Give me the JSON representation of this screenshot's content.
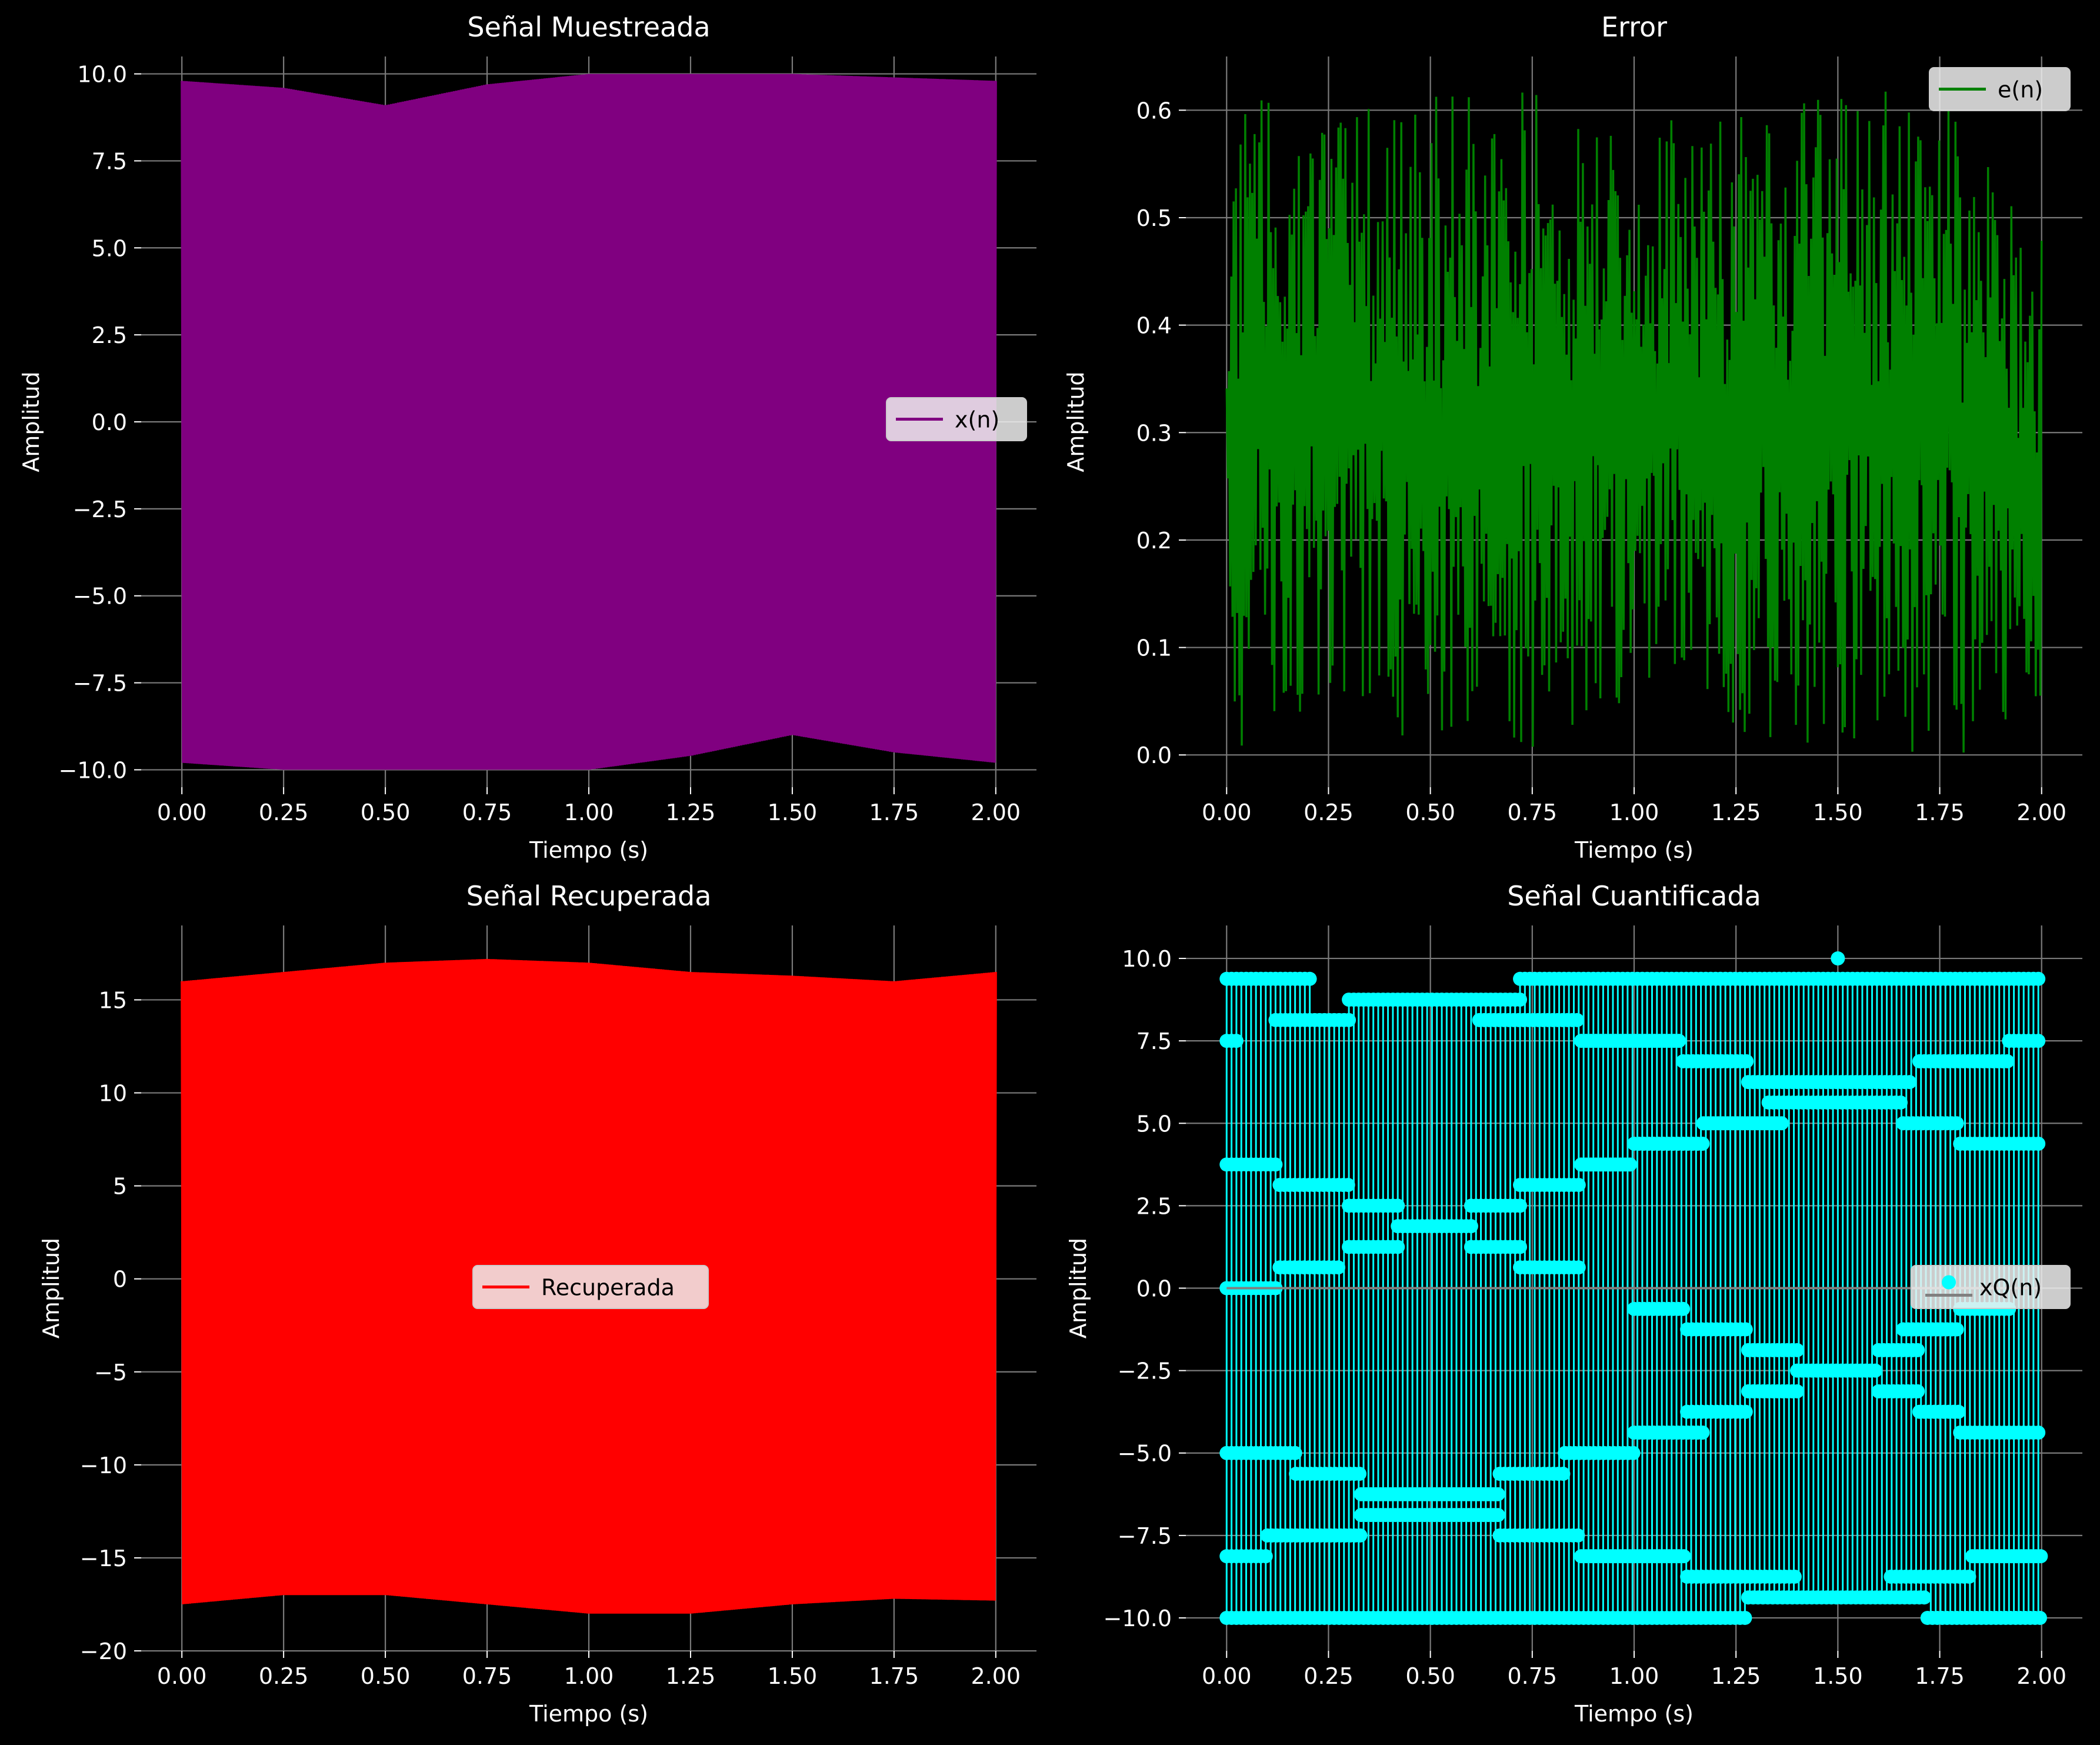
{
  "chart_data": [
    {
      "type": "line",
      "title": "Señal Muestreada",
      "xlabel": "Tiempo (s)",
      "ylabel": "Amplitud",
      "xlim": [
        -0.1,
        2.1
      ],
      "ylim": [
        -10.5,
        10.5
      ],
      "xticks": [
        0,
        0.25,
        0.5,
        0.75,
        1.0,
        1.25,
        1.5,
        1.75,
        2.0
      ],
      "xtick_labels": [
        "0.00",
        "0.25",
        "0.50",
        "0.75",
        "1.00",
        "1.25",
        "1.50",
        "1.75",
        "2.00"
      ],
      "yticks": [
        10,
        7.5,
        5,
        2.5,
        0,
        -2.5,
        -5,
        -7.5,
        -10
      ],
      "ytick_labels": [
        "10.0",
        "7.5",
        "5.0",
        "2.5",
        "0.0",
        "−2.5",
        "−5.0",
        "−7.5",
        "−10.0"
      ],
      "grid": true,
      "legend_position": "center-right",
      "series": [
        {
          "name": "x(n)",
          "color": "#800080",
          "style": "dense oscillation",
          "x": [
            0,
            0.25,
            0.5,
            0.75,
            1.0,
            1.25,
            1.5,
            1.75,
            2.0
          ],
          "envelope_max": [
            9.8,
            9.6,
            9.1,
            9.7,
            10.0,
            10.0,
            10.0,
            9.9,
            9.8
          ],
          "envelope_min": [
            -9.8,
            -10.0,
            -10.0,
            -10.0,
            -10.0,
            -9.6,
            -9.0,
            -9.5,
            -9.8
          ]
        }
      ]
    },
    {
      "type": "line",
      "title": "Error",
      "xlabel": "Tiempo (s)",
      "ylabel": "Amplitud",
      "xlim": [
        -0.1,
        2.1
      ],
      "ylim": [
        -0.03,
        0.65
      ],
      "xticks": [
        0,
        0.25,
        0.5,
        0.75,
        1.0,
        1.25,
        1.5,
        1.75,
        2.0
      ],
      "xtick_labels": [
        "0.00",
        "0.25",
        "0.50",
        "0.75",
        "1.00",
        "1.25",
        "1.50",
        "1.75",
        "2.00"
      ],
      "yticks": [
        0.6,
        0.5,
        0.4,
        0.3,
        0.2,
        0.1,
        0.0
      ],
      "ytick_labels": [
        "0.6",
        "0.5",
        "0.4",
        "0.3",
        "0.2",
        "0.1",
        "0.0"
      ],
      "grid": true,
      "legend_position": "top-right",
      "series": [
        {
          "name": "e(n)",
          "color": "#008000",
          "style": "dense oscillation",
          "x": [
            0,
            0.25,
            0.5,
            0.75,
            1.0,
            1.25,
            1.5,
            1.75,
            2.0
          ],
          "envelope_max": [
            0.62,
            0.6,
            0.62,
            0.62,
            0.6,
            0.6,
            0.62,
            0.62,
            0.5
          ],
          "envelope_min": [
            0.0,
            0.05,
            0.0,
            0.0,
            0.05,
            0.02,
            0.0,
            0.0,
            0.0
          ]
        }
      ]
    },
    {
      "type": "line",
      "title": "Señal Recuperada",
      "xlabel": "Tiempo (s)",
      "ylabel": "Amplitud",
      "xlim": [
        -0.1,
        2.1
      ],
      "ylim": [
        -20,
        19
      ],
      "xticks": [
        0,
        0.25,
        0.5,
        0.75,
        1.0,
        1.25,
        1.5,
        1.75,
        2.0
      ],
      "xtick_labels": [
        "0.00",
        "0.25",
        "0.50",
        "0.75",
        "1.00",
        "1.25",
        "1.50",
        "1.75",
        "2.00"
      ],
      "yticks": [
        15,
        10,
        5,
        0,
        -5,
        -10,
        -15,
        -20
      ],
      "ytick_labels": [
        "15",
        "10",
        "5",
        "0",
        "−5",
        "−10",
        "−15",
        "−20"
      ],
      "grid": true,
      "legend_position": "center",
      "series": [
        {
          "name": "Recuperada",
          "color": "#ff0000",
          "style": "dense oscillation",
          "x": [
            0,
            0.25,
            0.5,
            0.75,
            1.0,
            1.25,
            1.5,
            1.75,
            2.0
          ],
          "envelope_max": [
            16.0,
            16.5,
            17.0,
            17.2,
            17.0,
            16.5,
            16.3,
            16.0,
            16.5
          ],
          "envelope_min": [
            -17.5,
            -17.0,
            -17.0,
            -17.5,
            -18.0,
            -18.0,
            -17.5,
            -17.2,
            -17.3
          ]
        }
      ]
    },
    {
      "type": "scatter",
      "title": "Señal Cuantificada",
      "xlabel": "Tiempo (s)",
      "ylabel": "Amplitud",
      "xlim": [
        -0.1,
        2.1
      ],
      "ylim": [
        -11,
        11
      ],
      "xticks": [
        0,
        0.25,
        0.5,
        0.75,
        1.0,
        1.25,
        1.5,
        1.75,
        2.0
      ],
      "xtick_labels": [
        "0.00",
        "0.25",
        "0.50",
        "0.75",
        "1.00",
        "1.25",
        "1.50",
        "1.75",
        "2.00"
      ],
      "yticks": [
        10,
        7.5,
        5,
        2.5,
        0,
        -2.5,
        -5,
        -7.5,
        -10
      ],
      "ytick_labels": [
        "10.0",
        "7.5",
        "5.0",
        "2.5",
        "0.0",
        "−2.5",
        "−5.0",
        "−7.5",
        "−10.0"
      ],
      "grid": true,
      "legend_position": "center-right",
      "series": [
        {
          "name": "xQ(n)",
          "color": "#00ffff",
          "style": "stem",
          "baseline_color": "#808080",
          "levels": [
            {
              "y": 9.38,
              "x_start": 0.0,
              "x_end": 0.21
            },
            {
              "y": 9.38,
              "x_start": 0.72,
              "x_end": 2.0
            },
            {
              "y": 8.75,
              "x_start": 0.3,
              "x_end": 0.72
            },
            {
              "y": 8.13,
              "x_start": 0.12,
              "x_end": 0.3
            },
            {
              "y": 8.13,
              "x_start": 0.62,
              "x_end": 0.87
            },
            {
              "y": 7.5,
              "x_start": 0.0,
              "x_end": 0.03
            },
            {
              "y": 7.5,
              "x_start": 0.87,
              "x_end": 1.12
            },
            {
              "y": 7.5,
              "x_start": 1.92,
              "x_end": 2.0
            },
            {
              "y": 6.88,
              "x_start": 1.12,
              "x_end": 1.28
            },
            {
              "y": 6.88,
              "x_start": 1.7,
              "x_end": 1.92
            },
            {
              "y": 6.25,
              "x_start": 1.28,
              "x_end": 1.68
            },
            {
              "y": 5.63,
              "x_start": 1.33,
              "x_end": 1.66
            },
            {
              "y": 5.0,
              "x_start": 1.17,
              "x_end": 1.37
            },
            {
              "y": 5.0,
              "x_start": 1.66,
              "x_end": 1.8
            },
            {
              "y": 4.38,
              "x_start": 1.0,
              "x_end": 1.17
            },
            {
              "y": 4.38,
              "x_start": 1.8,
              "x_end": 2.0
            },
            {
              "y": 3.75,
              "x_start": 0.0,
              "x_end": 0.13
            },
            {
              "y": 3.75,
              "x_start": 0.87,
              "x_end": 1.0
            },
            {
              "y": 3.13,
              "x_start": 0.13,
              "x_end": 0.3
            },
            {
              "y": 3.13,
              "x_start": 0.72,
              "x_end": 0.87
            },
            {
              "y": 2.5,
              "x_start": 0.3,
              "x_end": 0.42
            },
            {
              "y": 2.5,
              "x_start": 0.6,
              "x_end": 0.72
            },
            {
              "y": 1.88,
              "x_start": 0.42,
              "x_end": 0.6
            },
            {
              "y": 1.25,
              "x_start": 0.3,
              "x_end": 0.42
            },
            {
              "y": 1.25,
              "x_start": 0.6,
              "x_end": 0.72
            },
            {
              "y": 0.63,
              "x_start": 0.13,
              "x_end": 0.28
            },
            {
              "y": 0.63,
              "x_start": 0.72,
              "x_end": 0.87
            },
            {
              "y": 0.0,
              "x_start": 0.0,
              "x_end": 0.13
            },
            {
              "y": -0.63,
              "x_start": 1.0,
              "x_end": 1.13
            },
            {
              "y": -0.63,
              "x_start": 1.8,
              "x_end": 1.92
            },
            {
              "y": -1.25,
              "x_start": 1.13,
              "x_end": 1.28
            },
            {
              "y": -1.25,
              "x_start": 1.66,
              "x_end": 1.8
            },
            {
              "y": -1.88,
              "x_start": 1.28,
              "x_end": 1.4
            },
            {
              "y": -1.88,
              "x_start": 1.6,
              "x_end": 1.7
            },
            {
              "y": -2.5,
              "x_start": 1.4,
              "x_end": 1.6
            },
            {
              "y": -3.13,
              "x_start": 1.28,
              "x_end": 1.4
            },
            {
              "y": -3.13,
              "x_start": 1.6,
              "x_end": 1.7
            },
            {
              "y": -3.75,
              "x_start": 1.13,
              "x_end": 1.28
            },
            {
              "y": -3.75,
              "x_start": 1.7,
              "x_end": 1.8
            },
            {
              "y": -4.38,
              "x_start": 1.0,
              "x_end": 1.17
            },
            {
              "y": -4.38,
              "x_start": 1.8,
              "x_end": 2.0
            },
            {
              "y": -5.0,
              "x_start": 0.0,
              "x_end": 0.17
            },
            {
              "y": -5.0,
              "x_start": 0.83,
              "x_end": 1.0
            },
            {
              "y": -5.63,
              "x_start": 0.17,
              "x_end": 0.33
            },
            {
              "y": -5.63,
              "x_start": 0.67,
              "x_end": 0.83
            },
            {
              "y": -6.25,
              "x_start": 0.33,
              "x_end": 0.67
            },
            {
              "y": -6.88,
              "x_start": 0.33,
              "x_end": 0.67
            },
            {
              "y": -7.5,
              "x_start": 0.1,
              "x_end": 0.33
            },
            {
              "y": -7.5,
              "x_start": 0.67,
              "x_end": 0.87
            },
            {
              "y": -8.13,
              "x_start": 0.0,
              "x_end": 0.1
            },
            {
              "y": -8.13,
              "x_start": 0.87,
              "x_end": 1.13
            },
            {
              "y": -8.13,
              "x_start": 1.83,
              "x_end": 2.0
            },
            {
              "y": -8.75,
              "x_start": 1.13,
              "x_end": 1.4
            },
            {
              "y": -8.75,
              "x_start": 1.63,
              "x_end": 1.83
            },
            {
              "y": -9.38,
              "x_start": 1.28,
              "x_end": 1.72
            },
            {
              "y": -10.0,
              "x_start": 0.0,
              "x_end": 1.28
            },
            {
              "y": -10.0,
              "x_start": 1.72,
              "x_end": 2.0
            }
          ],
          "extra_points": [
            {
              "x": 1.5,
              "y": 10.0
            }
          ]
        }
      ]
    }
  ]
}
